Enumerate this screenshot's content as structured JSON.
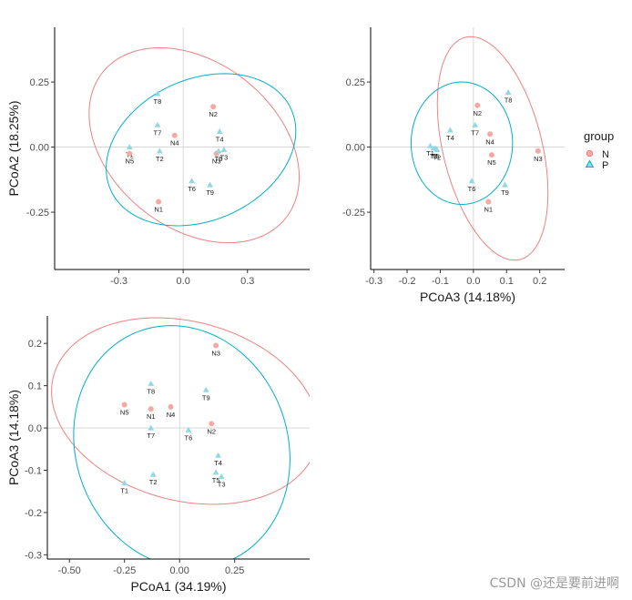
{
  "colors": {
    "N": "#F08080",
    "P": "#00B0C8",
    "N_fill": "#F7A8A2",
    "P_fill": "#8FD8E4"
  },
  "legend": {
    "title": "group",
    "items": [
      {
        "key": "N",
        "label": "N",
        "shape": "circle"
      },
      {
        "key": "P",
        "label": "P",
        "shape": "triangle"
      }
    ]
  },
  "watermark": "CSDN @还是要前进啊",
  "chart_data": [
    {
      "id": "p1",
      "type": "scatter",
      "xlabel": "",
      "ylabel": "PCoA2 (18.25%)",
      "xlim": [
        -0.6,
        0.59
      ],
      "ylim": [
        -0.47,
        0.46
      ],
      "xticks": [
        -0.3,
        0.0,
        0.3
      ],
      "xtick_labels": [
        "-0.3",
        "0.0",
        "0.3"
      ],
      "yticks": [
        -0.25,
        0.0,
        0.25
      ],
      "ytick_labels": [
        "-0.25",
        "0.00",
        "0.25"
      ],
      "ellipses": [
        {
          "group": "N",
          "cx": 0.051,
          "cy": 0.007,
          "rx": 0.518,
          "ry": 0.335,
          "angle_deg": -25
        },
        {
          "group": "P",
          "cx": 0.083,
          "cy": -0.01,
          "rx": 0.452,
          "ry": 0.277,
          "angle_deg": 15
        }
      ],
      "points": [
        {
          "label": "T8",
          "group": "P",
          "x": -0.12,
          "y": 0.205
        },
        {
          "label": "N2",
          "group": "N",
          "x": 0.14,
          "y": 0.155
        },
        {
          "label": "T7",
          "group": "P",
          "x": -0.12,
          "y": 0.085
        },
        {
          "label": "N4",
          "group": "N",
          "x": -0.04,
          "y": 0.045
        },
        {
          "label": "T4",
          "group": "P",
          "x": 0.17,
          "y": 0.06
        },
        {
          "label": "T1",
          "group": "P",
          "x": -0.25,
          "y": 0.0
        },
        {
          "label": "N5",
          "group": "N",
          "x": -0.25,
          "y": -0.025
        },
        {
          "label": "T2",
          "group": "P",
          "x": -0.11,
          "y": -0.015
        },
        {
          "label": "N3",
          "group": "N",
          "x": 0.155,
          "y": -0.025
        },
        {
          "label": "T5",
          "group": "P",
          "x": 0.165,
          "y": -0.015
        },
        {
          "label": "T3",
          "group": "P",
          "x": 0.19,
          "y": -0.01
        },
        {
          "label": "T6",
          "group": "P",
          "x": 0.04,
          "y": -0.13
        },
        {
          "label": "T9",
          "group": "P",
          "x": 0.125,
          "y": -0.145
        },
        {
          "label": "N1",
          "group": "N",
          "x": -0.115,
          "y": -0.21
        }
      ]
    },
    {
      "id": "p2",
      "type": "scatter",
      "xlabel": "PCoA3 (14.18%)",
      "ylabel": "",
      "xlim": [
        -0.31,
        0.275
      ],
      "ylim": [
        -0.47,
        0.46
      ],
      "xticks": [
        -0.3,
        -0.2,
        -0.1,
        0.0,
        0.1,
        0.2
      ],
      "xtick_labels": [
        "-0.3",
        "-0.2",
        "-0.1",
        "0.0",
        "0.1",
        "0.2"
      ],
      "yticks": [
        -0.25,
        0.0,
        0.25
      ],
      "ytick_labels": [
        "-0.25",
        "0.00",
        "0.25"
      ],
      "ellipses": [
        {
          "group": "N",
          "cx": 0.058,
          "cy": -0.005,
          "rx": 0.435,
          "ry": 0.151,
          "angle_deg": -80
        },
        {
          "group": "P",
          "cx": -0.035,
          "cy": 0.015,
          "rx": 0.153,
          "ry": 0.235,
          "angle_deg": 0
        }
      ],
      "points": [
        {
          "label": "T8",
          "group": "P",
          "x": 0.105,
          "y": 0.21
        },
        {
          "label": "N2",
          "group": "N",
          "x": 0.012,
          "y": 0.16
        },
        {
          "label": "T7",
          "group": "P",
          "x": 0.005,
          "y": 0.085
        },
        {
          "label": "T4",
          "group": "P",
          "x": -0.07,
          "y": 0.065
        },
        {
          "label": "N4",
          "group": "N",
          "x": 0.05,
          "y": 0.05
        },
        {
          "label": "T1",
          "group": "P",
          "x": -0.13,
          "y": 0.005
        },
        {
          "label": "T3",
          "group": "P",
          "x": -0.12,
          "y": -0.005
        },
        {
          "label": "T5",
          "group": "P",
          "x": -0.115,
          "y": -0.005
        },
        {
          "label": "T2",
          "group": "P",
          "x": -0.11,
          "y": -0.01
        },
        {
          "label": "N5",
          "group": "N",
          "x": 0.055,
          "y": -0.03
        },
        {
          "label": "N3",
          "group": "N",
          "x": 0.195,
          "y": -0.015
        },
        {
          "label": "T6",
          "group": "P",
          "x": -0.005,
          "y": -0.13
        },
        {
          "label": "T9",
          "group": "P",
          "x": 0.095,
          "y": -0.145
        },
        {
          "label": "N1",
          "group": "N",
          "x": 0.045,
          "y": -0.21
        }
      ]
    },
    {
      "id": "p3",
      "type": "scatter",
      "xlabel": "PCoA1 (34.19%)",
      "ylabel": "PCoA3 (14.18%)",
      "xlim": [
        -0.6,
        0.59
      ],
      "ylim": [
        -0.31,
        0.265
      ],
      "xticks": [
        -0.5,
        -0.25,
        0.0,
        0.25
      ],
      "xtick_labels": [
        "-0.50",
        "-0.25",
        "0.00",
        "0.25"
      ],
      "yticks": [
        -0.3,
        -0.2,
        -0.1,
        0.0,
        0.1,
        0.2
      ],
      "ytick_labels": [
        "-0.3",
        "-0.2",
        "-0.1",
        "0.0",
        "0.1",
        "0.2"
      ],
      "ellipses": [
        {
          "group": "N",
          "cx": 0.025,
          "cy": 0.04,
          "rx": 0.608,
          "ry": 0.215,
          "angle_deg": -5
        },
        {
          "group": "P",
          "cx": 0.01,
          "cy": -0.045,
          "rx": 0.492,
          "ry": 0.285,
          "angle_deg": -5
        }
      ],
      "points": [
        {
          "label": "N3",
          "group": "N",
          "x": 0.165,
          "y": 0.195
        },
        {
          "label": "T8",
          "group": "P",
          "x": -0.13,
          "y": 0.105
        },
        {
          "label": "T9",
          "group": "P",
          "x": 0.12,
          "y": 0.09
        },
        {
          "label": "N5",
          "group": "N",
          "x": -0.25,
          "y": 0.055
        },
        {
          "label": "N1",
          "group": "N",
          "x": -0.13,
          "y": 0.045
        },
        {
          "label": "N4",
          "group": "N",
          "x": -0.04,
          "y": 0.05
        },
        {
          "label": "N2",
          "group": "N",
          "x": 0.145,
          "y": 0.01
        },
        {
          "label": "T7",
          "group": "P",
          "x": -0.13,
          "y": 0.0
        },
        {
          "label": "T6",
          "group": "P",
          "x": 0.04,
          "y": -0.005
        },
        {
          "label": "T4",
          "group": "P",
          "x": 0.175,
          "y": -0.065
        },
        {
          "label": "T5",
          "group": "P",
          "x": 0.165,
          "y": -0.105
        },
        {
          "label": "T3",
          "group": "P",
          "x": 0.19,
          "y": -0.115
        },
        {
          "label": "T2",
          "group": "P",
          "x": -0.12,
          "y": -0.11
        },
        {
          "label": "T1",
          "group": "P",
          "x": -0.25,
          "y": -0.13
        }
      ]
    }
  ]
}
